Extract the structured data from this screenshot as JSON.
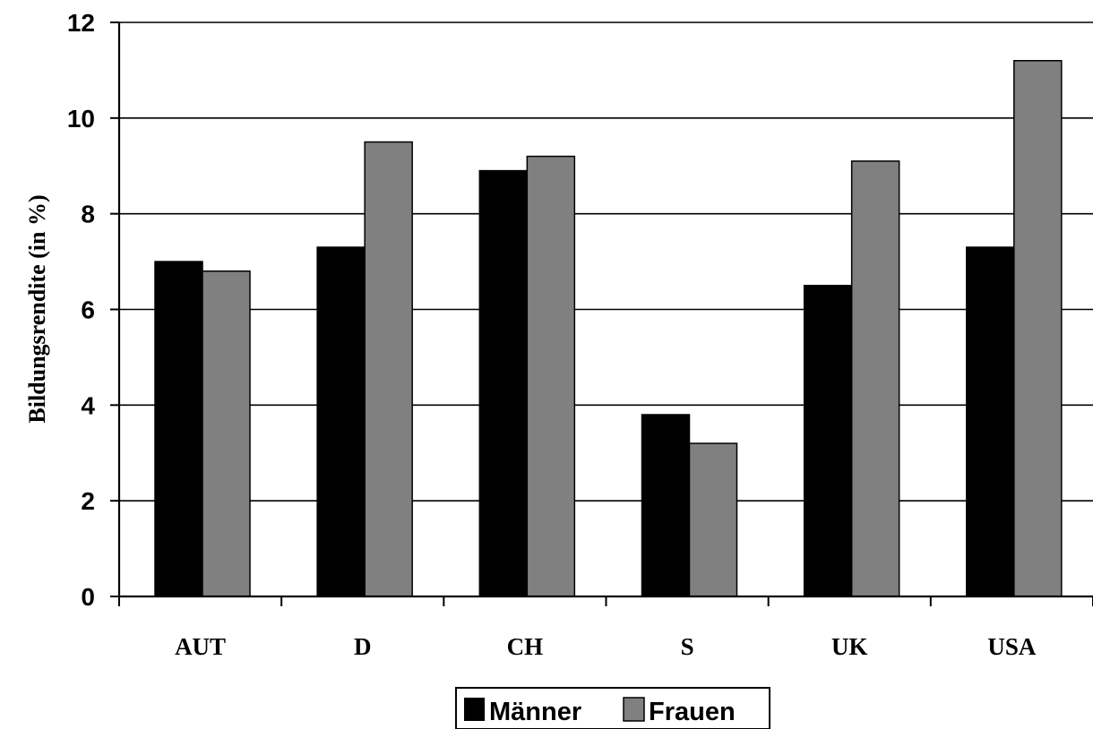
{
  "chart_data": {
    "type": "bar",
    "categories": [
      "AUT",
      "D",
      "CH",
      "S",
      "UK",
      "USA"
    ],
    "series": [
      {
        "name": "Männer",
        "values": [
          7.0,
          7.3,
          8.9,
          3.8,
          6.5,
          7.3
        ],
        "color": "#000000"
      },
      {
        "name": "Frauen",
        "values": [
          6.8,
          9.5,
          9.2,
          3.2,
          9.1,
          11.2
        ],
        "color": "#808080"
      }
    ],
    "xlabel": "",
    "ylabel": "Bildungsrendite (in %)",
    "ylim": [
      0,
      12
    ],
    "yticks": [
      "0",
      "2",
      "4",
      "6",
      "8",
      "10",
      "12"
    ],
    "grid": true,
    "legend_position": "bottom-center"
  }
}
